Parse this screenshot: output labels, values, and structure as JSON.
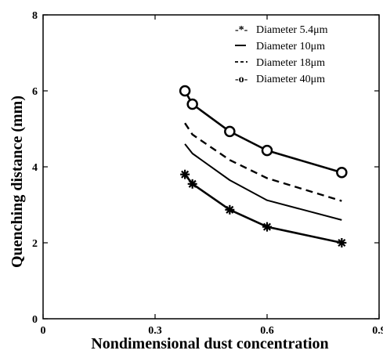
{
  "chart_data": {
    "type": "line",
    "xlabel": "Nondimensional dust concentration",
    "ylabel": "Quenching distance (mm)",
    "xlim": [
      0,
      0.9
    ],
    "ylim": [
      0,
      8
    ],
    "x_ticks": [
      0,
      0.3,
      0.6,
      0.9
    ],
    "x_tick_labels": [
      "0",
      "0.3",
      "0.6",
      "0.9"
    ],
    "y_ticks": [
      0,
      2,
      4,
      6,
      8
    ],
    "y_tick_labels": [
      "0",
      "2",
      "4",
      "6",
      "8"
    ],
    "grid": false,
    "legend_position": "top-right",
    "series": [
      {
        "name": "Diameter 5.4μm",
        "legend_symbol": "-*-",
        "marker": "star",
        "line_style": "solid-thick",
        "color": "#000000",
        "x": [
          0.38,
          0.4,
          0.5,
          0.6,
          0.8
        ],
        "y": [
          3.8,
          3.55,
          2.87,
          2.42,
          2.0
        ],
        "marker_x": [
          0.38,
          0.4,
          0.5,
          0.6,
          0.8
        ]
      },
      {
        "name": "Diameter 10μm",
        "legend_symbol": "—",
        "marker": "none",
        "line_style": "solid",
        "color": "#000000",
        "x": [
          0.38,
          0.4,
          0.5,
          0.6,
          0.8
        ],
        "y": [
          4.6,
          4.35,
          3.65,
          3.12,
          2.6
        ],
        "marker_x": []
      },
      {
        "name": "Diameter 18μm",
        "legend_symbol": "---",
        "marker": "none",
        "line_style": "dashed",
        "color": "#000000",
        "x": [
          0.38,
          0.4,
          0.5,
          0.6,
          0.8
        ],
        "y": [
          5.15,
          4.85,
          4.18,
          3.7,
          3.1
        ],
        "marker_x": []
      },
      {
        "name": "Diameter 40μm",
        "legend_symbol": "-o-",
        "marker": "circle",
        "line_style": "solid-thick",
        "color": "#000000",
        "x": [
          0.38,
          0.4,
          0.5,
          0.6,
          0.8
        ],
        "y": [
          6.0,
          5.65,
          4.93,
          4.43,
          3.85
        ],
        "marker_x": [
          0.38,
          0.4,
          0.5,
          0.6,
          0.8
        ]
      }
    ]
  }
}
